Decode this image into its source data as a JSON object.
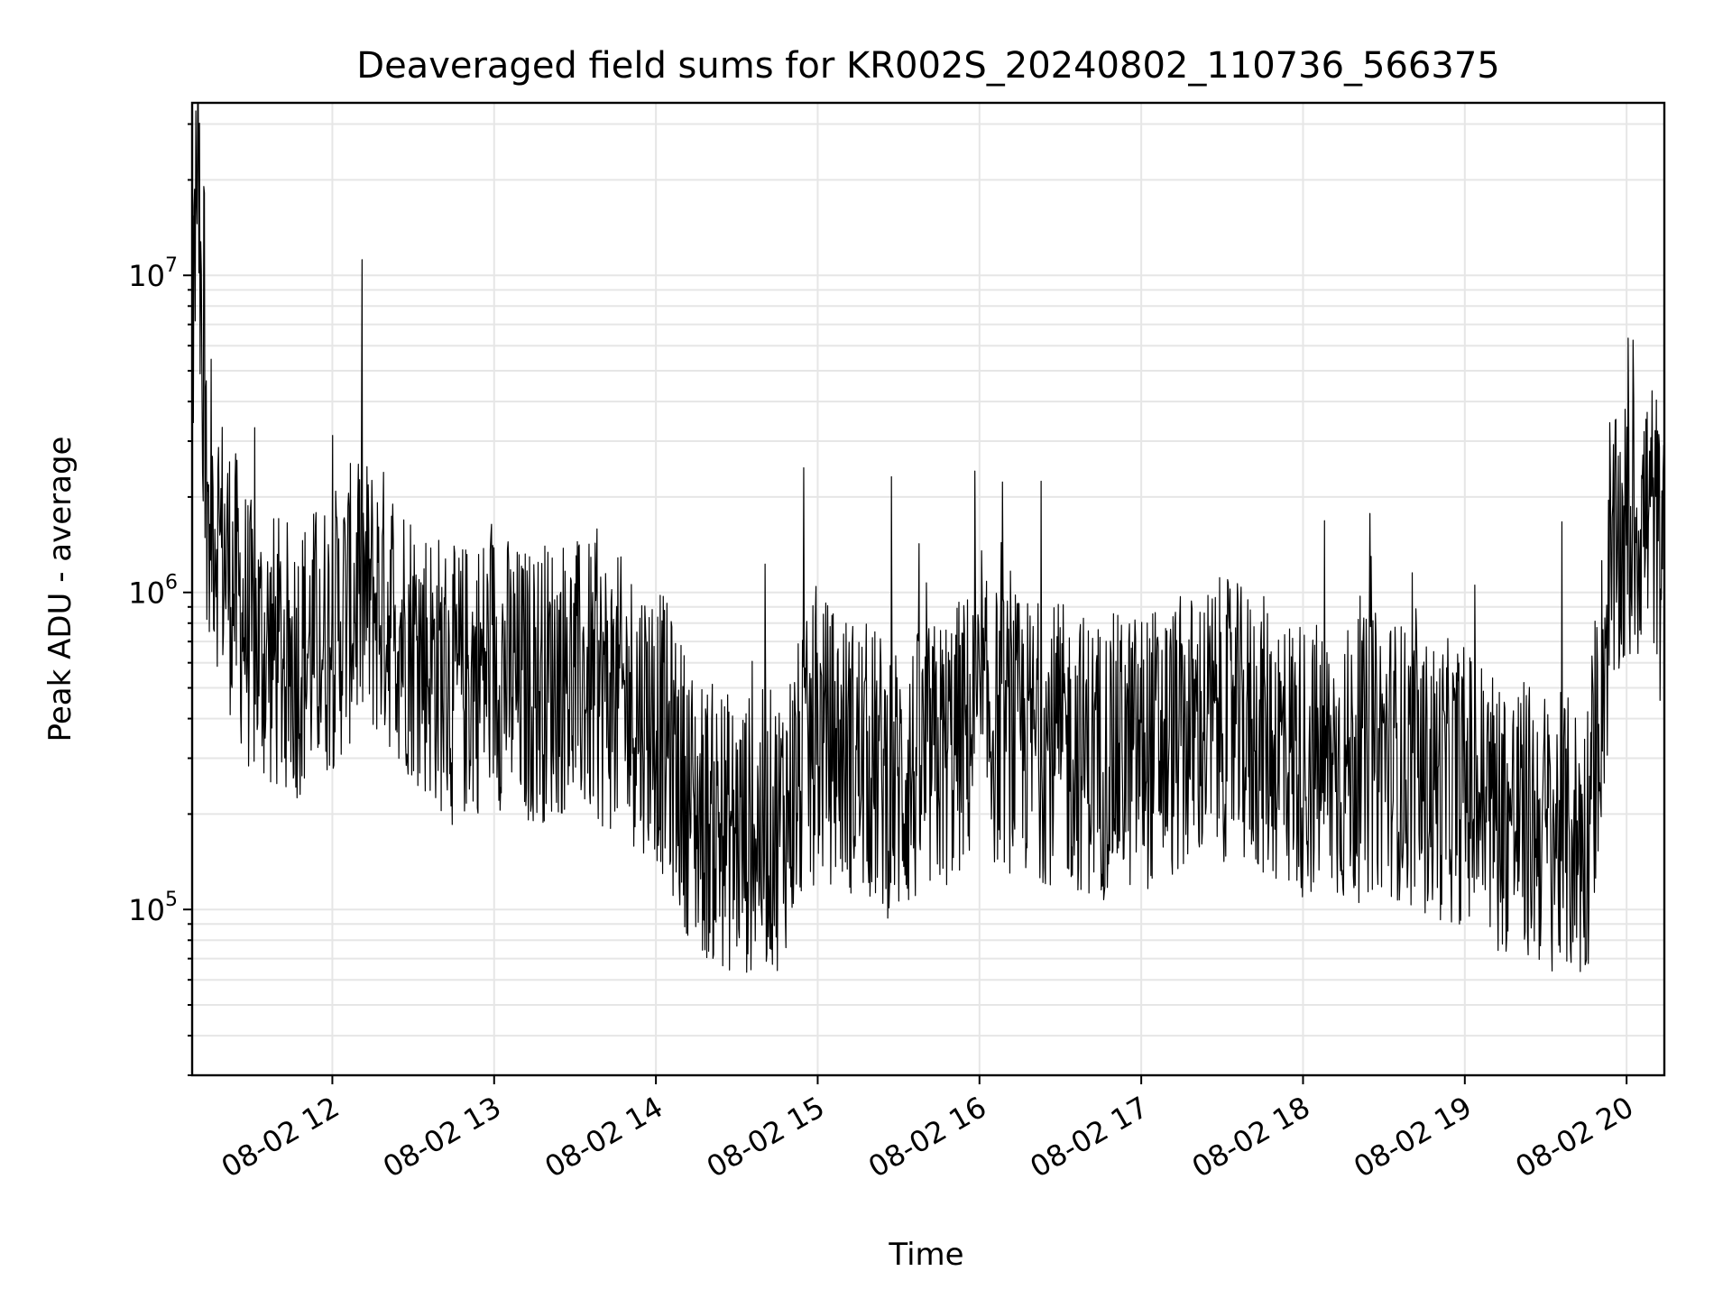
{
  "chart_data": {
    "type": "line",
    "title": "Deaveraged field sums for KR002S_20240802_110736_566375",
    "xlabel": "Time",
    "ylabel": "Peak ADU - average",
    "y_scale": "log",
    "grid": true,
    "legend": "none",
    "line_color": "#000000",
    "xlim": [
      "2024-08-02 11:08",
      "2024-08-02 20:14"
    ],
    "ylim": [
      30000,
      35000000
    ],
    "x_ticks": [
      "08-02 12",
      "08-02 13",
      "08-02 14",
      "08-02 15",
      "08-02 16",
      "08-02 17",
      "08-02 18",
      "08-02 19",
      "08-02 20"
    ],
    "y_ticks": [
      {
        "base": "10",
        "exp": "5",
        "value": 100000
      },
      {
        "base": "10",
        "exp": "6",
        "value": 1000000
      },
      {
        "base": "10",
        "exp": "7",
        "value": 10000000
      }
    ],
    "series": [
      {
        "x": [
          "2024-08-02 11:08",
          "2024-08-02 11:10",
          "2024-08-02 11:12",
          "2024-08-02 11:20",
          "2024-08-02 11:30",
          "2024-08-02 11:45",
          "2024-08-02 12:00",
          "2024-08-02 12:10",
          "2024-08-02 12:20",
          "2024-08-02 12:30",
          "2024-08-02 12:45",
          "2024-08-02 13:00",
          "2024-08-02 13:10",
          "2024-08-02 13:25",
          "2024-08-02 13:40",
          "2024-08-02 13:50",
          "2024-08-02 14:00",
          "2024-08-02 14:15",
          "2024-08-02 14:30",
          "2024-08-02 14:45",
          "2024-08-02 15:00",
          "2024-08-02 15:15",
          "2024-08-02 15:30",
          "2024-08-02 15:45",
          "2024-08-02 16:00",
          "2024-08-02 16:15",
          "2024-08-02 16:30",
          "2024-08-02 16:45",
          "2024-08-02 17:00",
          "2024-08-02 17:15",
          "2024-08-02 17:30",
          "2024-08-02 17:45",
          "2024-08-02 18:00",
          "2024-08-02 18:15",
          "2024-08-02 18:30",
          "2024-08-02 18:45",
          "2024-08-02 19:00",
          "2024-08-02 19:15",
          "2024-08-02 19:30",
          "2024-08-02 19:45",
          "2024-08-02 19:55",
          "2024-08-02 20:00",
          "2024-08-02 20:05",
          "2024-08-02 20:10",
          "2024-08-02 20:14"
        ],
        "y": [
          4500000,
          27000000,
          2500000,
          1300000,
          700000,
          600000,
          750000,
          1000000,
          900000,
          700000,
          500000,
          600000,
          500000,
          550000,
          500000,
          450000,
          400000,
          200000,
          170000,
          180000,
          350000,
          300000,
          250000,
          300000,
          400000,
          350000,
          330000,
          300000,
          320000,
          350000,
          400000,
          350000,
          300000,
          280000,
          320000,
          260000,
          250000,
          200000,
          180000,
          160000,
          1200000,
          1500000,
          1700000,
          1800000,
          1000000
        ]
      }
    ]
  }
}
